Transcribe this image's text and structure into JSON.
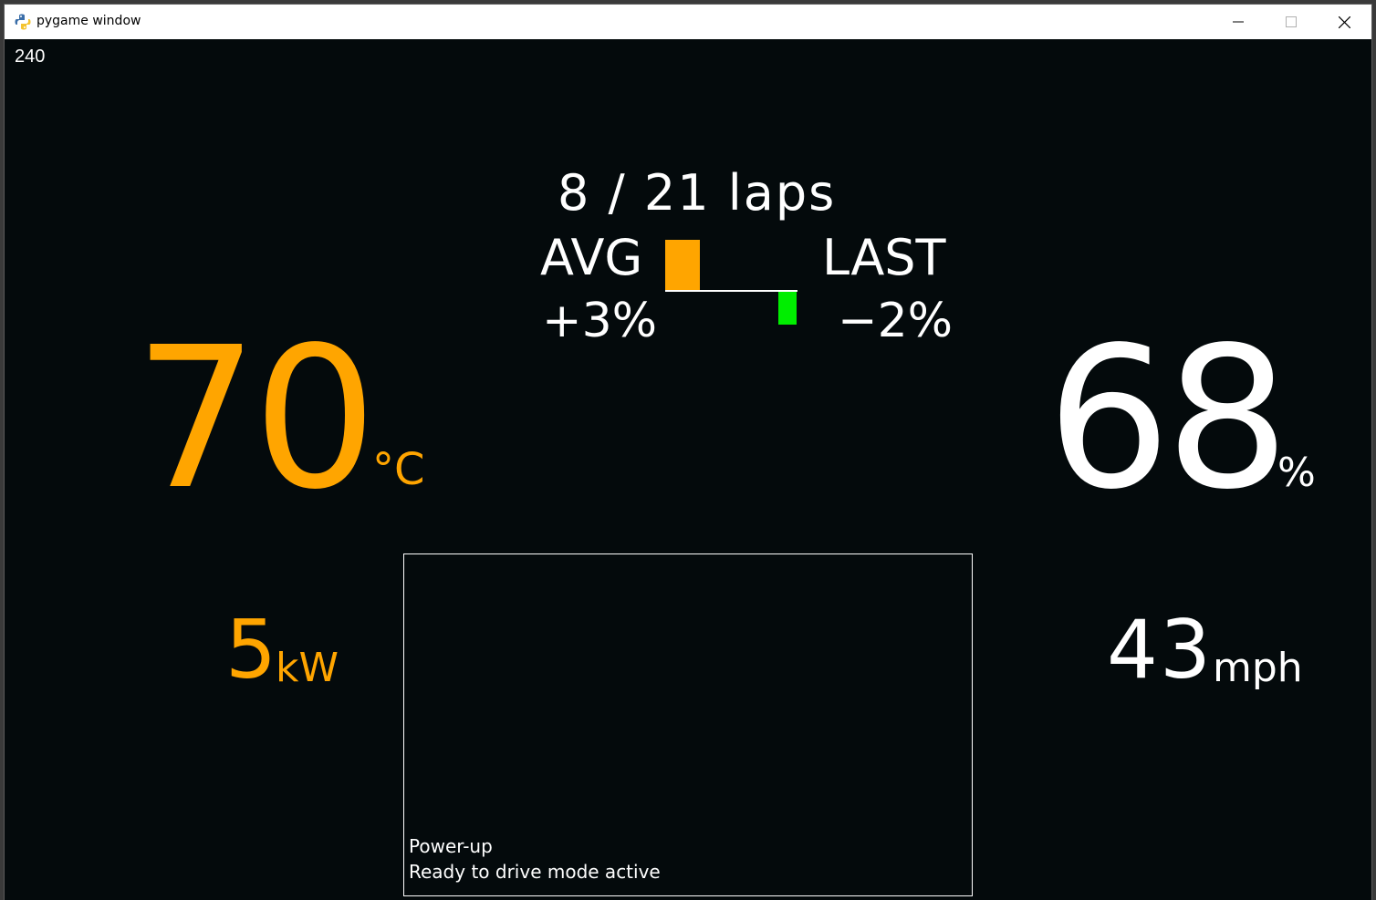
{
  "window": {
    "title": "pygame window"
  },
  "dashboard": {
    "fps": "240",
    "laps": "8 / 21 laps",
    "avg_label": "AVG",
    "avg_value": "+3%",
    "last_label": "LAST",
    "last_value": "−2%",
    "avg_bar_color": "#ffa500",
    "last_bar_color": "#00ee00",
    "temperature_value": "70",
    "temperature_unit": "°C",
    "battery_value": "68",
    "battery_unit": "%",
    "power_value": "5",
    "power_unit": "kW",
    "speed_value": "43",
    "speed_unit": "mph",
    "accent_color": "#ffa500"
  },
  "messages": [
    "Power-up",
    "Ready to drive mode active"
  ]
}
